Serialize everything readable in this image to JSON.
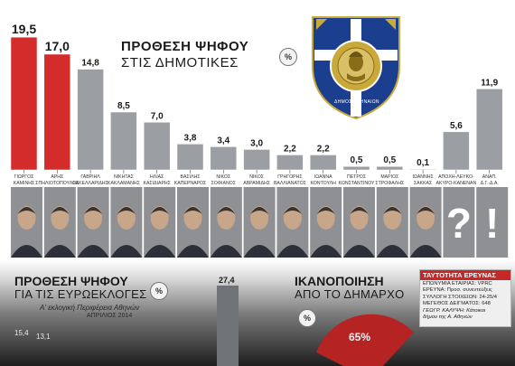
{
  "title": {
    "line1": "ΠΡΟΘΕΣΗ ΨΗΦΟΥ",
    "line2": "ΣΤΙΣ ΔΗΜΟΤΙΚΕΣ",
    "percent_badge": "%"
  },
  "emblem": {
    "text": "ΔΗΜΟΣ ΑΘΗΝΑΙΩΝ",
    "colors": {
      "blue": "#1c3e8e",
      "gold": "#c9a93a"
    }
  },
  "colors": {
    "highlight_bar": "#d42b2b",
    "other_bar": "#9b9ea3",
    "bar_outline": "#ffffff"
  },
  "chart_data": {
    "type": "bar",
    "title": "ΠΡΟΘΕΣΗ ΨΗΦΟΥ ΣΤΙΣ ΔΗΜΟΤΙΚΕΣ",
    "unit": "%",
    "ylim": [
      0,
      20
    ],
    "categories": [
      [
        "ΓΙΩΡΓΟΣ",
        "ΚΑΜΙΝΗΣ"
      ],
      [
        "ΑΡΗΣ",
        "ΣΠΗΛΙΟΤΟΠΟΥΛΟΣ"
      ],
      [
        "ΓΑΒΡΙΗΛ",
        "ΣΑΚΕΛΛΑΡΙΔΗΣ"
      ],
      [
        "ΝΙΚΗΤΑΣ",
        "ΚΑΚΛΑΜΑΝΗΣ"
      ],
      [
        "ΗΛΙΑΣ",
        "ΚΑΣΙΔΙΑΡΗΣ"
      ],
      [
        "ΒΑΣΙΛΗΣ",
        "ΚΑΠΕΡΝΑΡΟΣ"
      ],
      [
        "ΝΙΚΟΣ",
        "ΣΟΦΙΑΝΟΣ"
      ],
      [
        "ΝΙΚΟΣ",
        "ΑΒΡΑΜΙΔΗΣ"
      ],
      [
        "ΓΡΗΓΟΡΗΣ",
        "ΒΑΛΛΙΑΝΑΤΟΣ"
      ],
      [
        "ΙΩΑΝΝΑ",
        "ΚΟΝΤΟΥΛΗ"
      ],
      [
        "ΠΕΤΡΟΣ",
        "ΚΩΝΣΤΑΝΤΙΝΟΥ"
      ],
      [
        "ΜΑΡΙΟΣ",
        "ΣΤΡΟΦΑΛΗΣ"
      ],
      [
        "ΙΩΑΝΝΗΣ",
        "ΣΑΚΚΑΣ"
      ],
      [
        "ΑΠΟΧΗ-ΛΕΥΚΟ-",
        "ΑΚΥΡΟ-ΚΑΝΕΝΑΝ"
      ],
      [
        "ΑΝΑΠ.",
        "Δ.Γ.-Δ.Α."
      ]
    ],
    "values": [
      19.5,
      17.0,
      14.8,
      8.5,
      7.0,
      3.8,
      3.4,
      3.0,
      2.2,
      2.2,
      0.5,
      0.5,
      0.1,
      5.6,
      11.9
    ],
    "value_labels": [
      "19,5",
      "17,0",
      "14,8",
      "8,5",
      "7,0",
      "3,8",
      "3,4",
      "3,0",
      "2,2",
      "2,2",
      "0,5",
      "0,5",
      "0,1",
      "5,6",
      "11,9"
    ],
    "highlight": [
      true,
      true,
      false,
      false,
      false,
      false,
      false,
      false,
      false,
      false,
      false,
      false,
      false,
      false,
      false
    ],
    "portrait_marks": [
      "",
      "",
      "",
      "",
      "",
      "",
      "",
      "",
      "",
      "",
      "",
      "",
      "",
      "?",
      "!"
    ]
  },
  "lower": {
    "euro_title_line1": "ΠΡΟΘΕΣΗ ΨΗΦΟΥ",
    "euro_title_line2": "ΓΙΑ ΤΙΣ ΕΥΡΩΕΚΛΟΓΕΣ",
    "euro_sub1": "Α' εκλογική Περιφέρεια Αθηνών",
    "euro_sub2": "ΑΠΡΙΛΙΟΣ 2014",
    "euro_badge": "%",
    "euro_values": [
      "15,4",
      "13,1",
      "27,4"
    ],
    "satisfaction_title_line1": "ΙΚΑΝΟΠΟΙΗΣΗ",
    "satisfaction_title_line2": "ΑΠΟ ΤΟ ΔΗΜΑΡΧΟ",
    "satisfaction_badge": "%",
    "satisfaction_value": "65%",
    "survey_box": {
      "title": "ΤΑΥΤΟΤΗΤΑ ΕΡΕΥΝΑΣ",
      "lines": [
        "ΕΠΩΝΥΜΙΑ ΕΤΑΙΡΙΑΣ: VPRC",
        "ΕΡΕΥΝΑ: Προσ. συνεντεύξεις",
        "ΣΥΛΛΟΓΗ ΣΤΟΙΧΕΙΩΝ: 24-25/4",
        "ΜΕΓΕΘΟΣ ΔΕΙΓΜΑΤΟΣ: 648",
        "ΓΕΩΓΡ. ΚΑΛΥΨΗ: Κάτοικοι",
        "δήμου της Α. Αθηνών"
      ]
    }
  }
}
